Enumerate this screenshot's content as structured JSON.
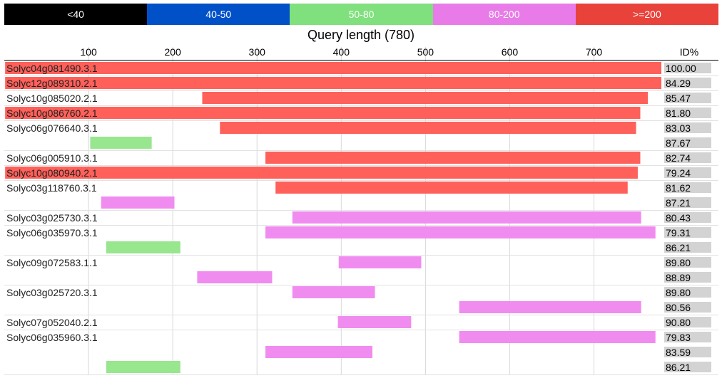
{
  "legend": [
    {
      "label": "<40",
      "color": "#000000"
    },
    {
      "label": "40-50",
      "color": "#0050c8"
    },
    {
      "label": "50-80",
      "color": "#7fe07d"
    },
    {
      "label": "80-200",
      "color": "#e87be8"
    },
    {
      "label": ">=200",
      "color": "#e8423a"
    }
  ],
  "chart_data": {
    "type": "bar",
    "title": "Query length (780)",
    "x_ticks": [
      100,
      200,
      300,
      400,
      500,
      600,
      700
    ],
    "xlim": [
      0,
      780
    ],
    "id_header": "ID%",
    "grid": true,
    "colors": {
      "50-80": "#98e68e",
      "80-200": "#f08cf0",
      ">=200": "#ff605a"
    },
    "hits": [
      {
        "name": "Solyc04g081490.3.1",
        "hsps": [
          {
            "start": 1,
            "end": 780,
            "id": "100.00",
            "class": ">=200"
          }
        ]
      },
      {
        "name": "Solyc12g089310.2.1",
        "hsps": [
          {
            "start": 1,
            "end": 780,
            "id": "84.29",
            "class": ">=200"
          }
        ]
      },
      {
        "name": "Solyc10g085020.2.1",
        "hsps": [
          {
            "start": 235,
            "end": 764,
            "id": "85.47",
            "class": ">=200"
          }
        ]
      },
      {
        "name": "Solyc10g086760.2.1",
        "hsps": [
          {
            "start": 1,
            "end": 755,
            "id": "81.80",
            "class": ">=200"
          }
        ]
      },
      {
        "name": "Solyc06g076640.3.1",
        "hsps": [
          {
            "start": 256,
            "end": 750,
            "id": "83.03",
            "class": ">=200"
          },
          {
            "start": 102,
            "end": 175,
            "id": "87.67",
            "class": "50-80"
          }
        ]
      },
      {
        "name": "Solyc06g005910.3.1",
        "hsps": [
          {
            "start": 310,
            "end": 755,
            "id": "82.74",
            "class": ">=200"
          }
        ]
      },
      {
        "name": "Solyc10g080940.2.1",
        "hsps": [
          {
            "start": 1,
            "end": 752,
            "id": "79.24",
            "class": ">=200"
          }
        ]
      },
      {
        "name": "Solyc03g118760.3.1",
        "hsps": [
          {
            "start": 322,
            "end": 740,
            "id": "81.62",
            "class": ">=200"
          },
          {
            "start": 115,
            "end": 202,
            "id": "87.21",
            "class": "80-200"
          }
        ]
      },
      {
        "name": "Solyc03g025730.3.1",
        "hsps": [
          {
            "start": 342,
            "end": 756,
            "id": "80.43",
            "class": "80-200"
          }
        ]
      },
      {
        "name": "Solyc06g035970.3.1",
        "hsps": [
          {
            "start": 310,
            "end": 773,
            "id": "79.31",
            "class": "80-200"
          },
          {
            "start": 121,
            "end": 209,
            "id": "86.21",
            "class": "50-80"
          }
        ]
      },
      {
        "name": "Solyc09g072583.1.1",
        "hsps": [
          {
            "start": 397,
            "end": 495,
            "id": "89.80",
            "class": "80-200"
          },
          {
            "start": 229,
            "end": 318,
            "id": "88.89",
            "class": "80-200"
          }
        ]
      },
      {
        "name": "Solyc03g025720.3.1",
        "hsps": [
          {
            "start": 342,
            "end": 440,
            "id": "89.80",
            "class": "80-200"
          },
          {
            "start": 540,
            "end": 756,
            "id": "80.56",
            "class": "80-200"
          }
        ]
      },
      {
        "name": "Solyc07g052040.2.1",
        "hsps": [
          {
            "start": 396,
            "end": 483,
            "id": "90.80",
            "class": "80-200"
          }
        ]
      },
      {
        "name": "Solyc06g035960.3.1",
        "hsps": [
          {
            "start": 540,
            "end": 773,
            "id": "79.83",
            "class": "80-200"
          },
          {
            "start": 310,
            "end": 437,
            "id": "83.59",
            "class": "80-200"
          },
          {
            "start": 121,
            "end": 209,
            "id": "86.21",
            "class": "50-80"
          }
        ]
      }
    ]
  }
}
